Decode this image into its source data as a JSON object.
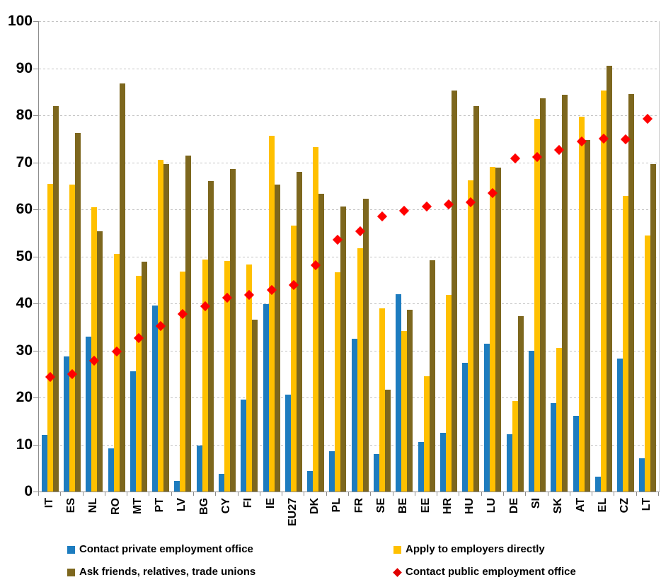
{
  "chart_data": {
    "type": "bar",
    "title": "",
    "xlabel": "",
    "ylabel": "",
    "ylim": [
      0,
      100
    ],
    "y_ticks": [
      0,
      10,
      20,
      30,
      40,
      50,
      60,
      70,
      80,
      90,
      100
    ],
    "grid": "horizontal-dashed",
    "legend_position": "bottom",
    "categories": [
      "IT",
      "ES",
      "NL",
      "RO",
      "MT",
      "PT",
      "LV",
      "BG",
      "CY",
      "FI",
      "IE",
      "EU27",
      "DK",
      "PL",
      "FR",
      "SE",
      "BE",
      "EE",
      "HR",
      "HU",
      "LU",
      "DE",
      "SI",
      "SK",
      "AT",
      "EL",
      "CZ",
      "LT"
    ],
    "series": [
      {
        "name": "Contact private employment office",
        "type": "bar",
        "color": "#1D7CBF",
        "values": [
          12.0,
          28.7,
          32.9,
          9.2,
          25.6,
          39.5,
          2.3,
          9.8,
          3.8,
          19.6,
          39.8,
          20.6,
          4.4,
          8.6,
          32.5,
          8.0,
          42.0,
          10.6,
          12.5,
          27.4,
          31.5,
          12.2,
          30.0,
          18.8,
          16.1,
          3.2,
          28.2,
          7.0
        ]
      },
      {
        "name": "Apply to employers directly",
        "type": "bar",
        "color": "#FFC000",
        "values": [
          65.4,
          65.2,
          60.5,
          50.6,
          45.8,
          70.6,
          46.8,
          49.3,
          49.1,
          48.2,
          75.6,
          56.5,
          73.2,
          46.6,
          51.7,
          39.0,
          34.2,
          24.5,
          41.8,
          66.2,
          69.0,
          19.3,
          79.2,
          30.5,
          79.7,
          85.3,
          62.8,
          54.4
        ]
      },
      {
        "name": "Ask friends, relatives, trade unions",
        "type": "bar",
        "color": "#7D671E",
        "values": [
          82.0,
          76.2,
          55.3,
          86.7,
          48.8,
          69.6,
          71.4,
          66.0,
          68.6,
          36.5,
          65.2,
          68.0,
          63.3,
          60.6,
          62.2,
          21.7,
          38.7,
          49.2,
          85.3,
          82.0,
          68.8,
          37.3,
          83.6,
          84.3,
          74.8,
          90.5,
          84.5,
          69.6
        ]
      },
      {
        "name": "Contact public employment office",
        "type": "scatter",
        "marker": "diamond",
        "color": "#FF0000",
        "values": [
          24.4,
          25.0,
          27.8,
          29.8,
          32.6,
          35.2,
          37.8,
          39.4,
          41.2,
          41.8,
          42.8,
          43.9,
          48.1,
          53.6,
          55.3,
          58.5,
          59.7,
          60.6,
          61.1,
          61.5,
          63.5,
          70.8,
          71.2,
          72.6,
          74.5,
          75.0,
          74.9,
          79.2
        ]
      }
    ],
    "colors": {
      "gridline": "#C3C3C3",
      "axis": "#8C8C8C",
      "text": "#000000"
    }
  }
}
